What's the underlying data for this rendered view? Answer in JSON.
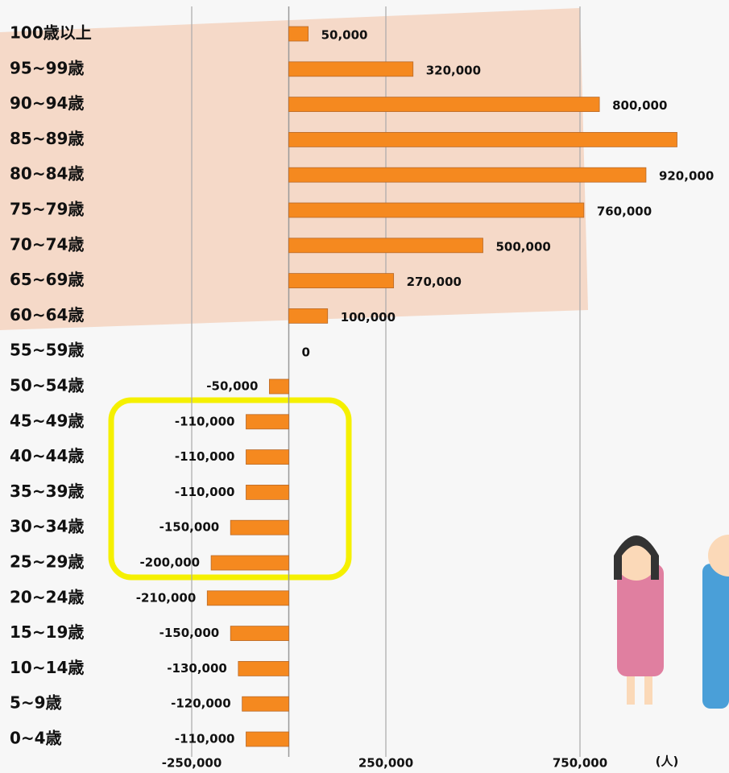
{
  "chart_data": {
    "type": "bar",
    "orientation": "horizontal",
    "x_label": "(人)",
    "categories": [
      "100歳以上",
      "95~99歳",
      "90~94歳",
      "85~89歳",
      "80~84歳",
      "75~79歳",
      "70~74歳",
      "65~69歳",
      "60~64歳",
      "55~59歳",
      "50~54歳",
      "45~49歳",
      "40~44歳",
      "35~39歳",
      "30~34歳",
      "25~29歳",
      "20~24歳",
      "15~19歳",
      "10~14歳",
      "5~9歳",
      "0~4歳"
    ],
    "values": [
      50000,
      320000,
      800000,
      1000000,
      920000,
      760000,
      500000,
      270000,
      100000,
      0,
      -50000,
      -110000,
      -110000,
      -110000,
      -150000,
      -200000,
      -210000,
      -150000,
      -130000,
      -120000,
      -110000
    ],
    "value_labels": [
      "50,000",
      "320,000",
      "800,000",
      null,
      "920,000",
      "760,000",
      "500,000",
      "270,000",
      "100,000",
      "0",
      "-50,000",
      "-110,000",
      "-110,000",
      "-110,000",
      "-150,000",
      "-200,000",
      "-210,000",
      "-150,000",
      "-130,000",
      "-120,000",
      "-110,000"
    ],
    "color": "#f5891f",
    "xlim": [
      -500000,
      1000000
    ],
    "xticks": [
      {
        "value": -250000,
        "label": "-250,000"
      },
      {
        "value": 250000,
        "label": "250,000"
      },
      {
        "value": 750000,
        "label": "750,000"
      }
    ],
    "grid": true
  }
}
